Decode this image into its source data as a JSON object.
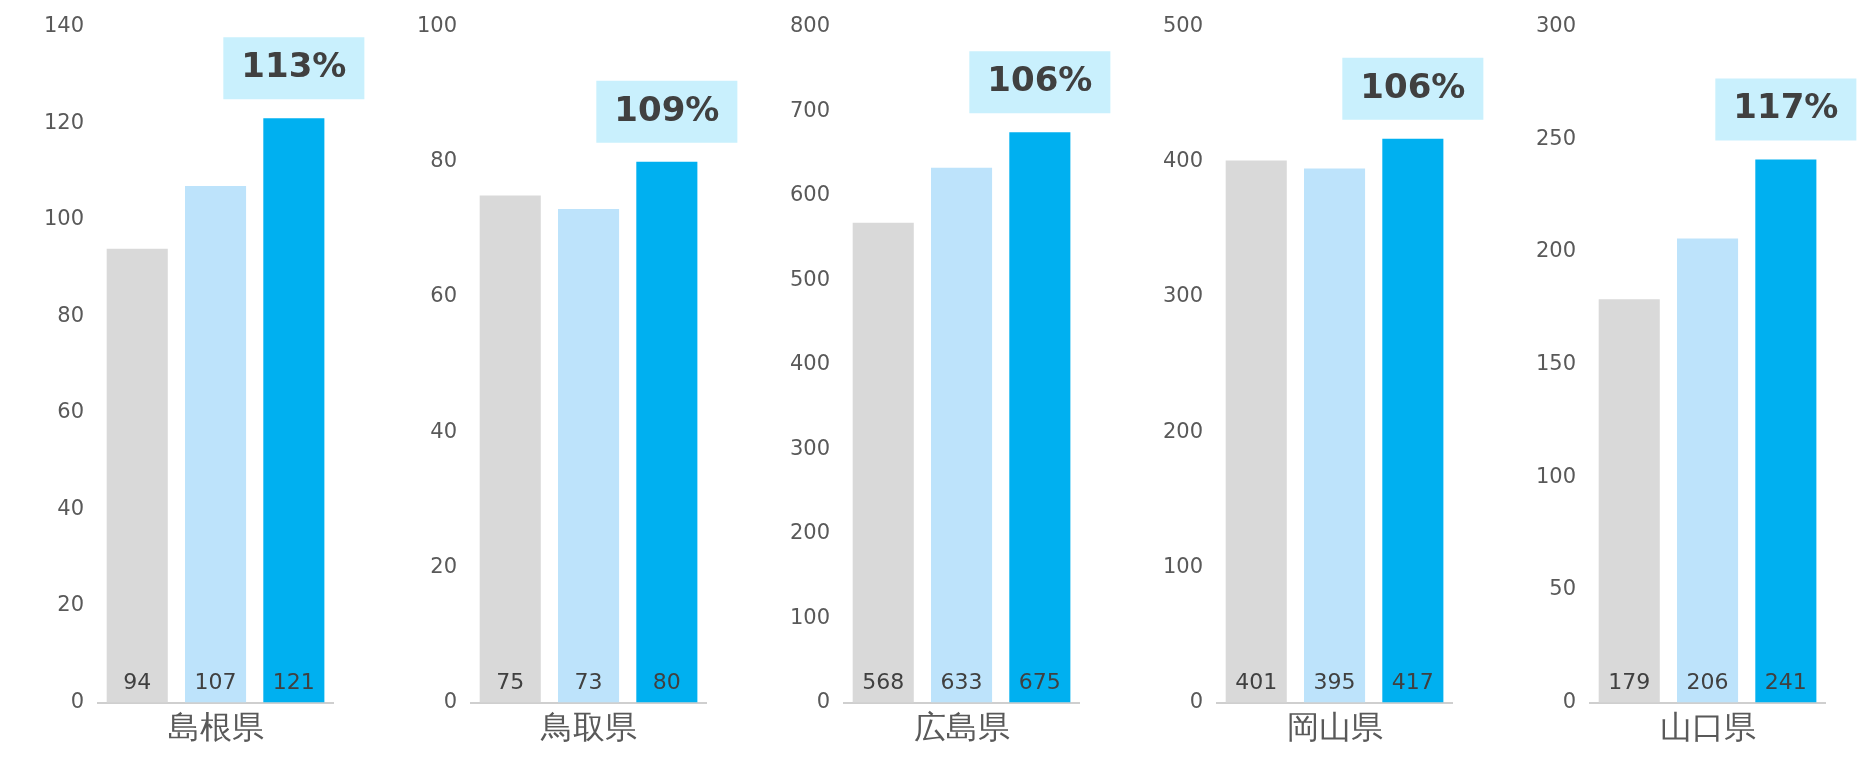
{
  "chart_data": [
    {
      "type": "bar",
      "categories": [
        null,
        "島根県",
        null
      ],
      "values": [
        94,
        107,
        121
      ],
      "colors": [
        "#d9d9d9",
        "#bde3fb",
        "#00b0f0"
      ],
      "ylim": [
        0,
        140
      ],
      "yticks": [
        0,
        20,
        40,
        60,
        80,
        100,
        120,
        140
      ],
      "data_labels": true,
      "annotations": [
        "113%"
      ]
    },
    {
      "type": "bar",
      "categories": [
        null,
        "鳥取県",
        null
      ],
      "values": [
        75,
        73,
        80
      ],
      "colors": [
        "#d9d9d9",
        "#bde3fb",
        "#00b0f0"
      ],
      "ylim": [
        0,
        100
      ],
      "yticks": [
        0,
        20,
        40,
        60,
        80,
        100
      ],
      "data_labels": true,
      "annotations": [
        "109%"
      ]
    },
    {
      "type": "bar",
      "categories": [
        null,
        "広島県",
        null
      ],
      "values": [
        568,
        633,
        675
      ],
      "colors": [
        "#d9d9d9",
        "#bde3fb",
        "#00b0f0"
      ],
      "ylim": [
        0,
        800
      ],
      "yticks": [
        0,
        100,
        200,
        300,
        400,
        500,
        600,
        700,
        800
      ],
      "data_labels": true,
      "annotations": [
        "106%"
      ]
    },
    {
      "type": "bar",
      "categories": [
        null,
        "岡山県",
        null
      ],
      "values": [
        401,
        395,
        417
      ],
      "colors": [
        "#d9d9d9",
        "#bde3fb",
        "#00b0f0"
      ],
      "ylim": [
        0,
        500
      ],
      "yticks": [
        0,
        100,
        200,
        300,
        400,
        500
      ],
      "data_labels": true,
      "annotations": [
        "106%"
      ]
    },
    {
      "type": "bar",
      "categories": [
        null,
        "山口県",
        null
      ],
      "values": [
        179,
        206,
        241
      ],
      "colors": [
        "#d9d9d9",
        "#bde3fb",
        "#00b0f0"
      ],
      "ylim": [
        0,
        300
      ],
      "yticks": [
        0,
        50,
        100,
        150,
        200,
        250,
        300
      ],
      "data_labels": true,
      "annotations": [
        "117%"
      ]
    }
  ]
}
